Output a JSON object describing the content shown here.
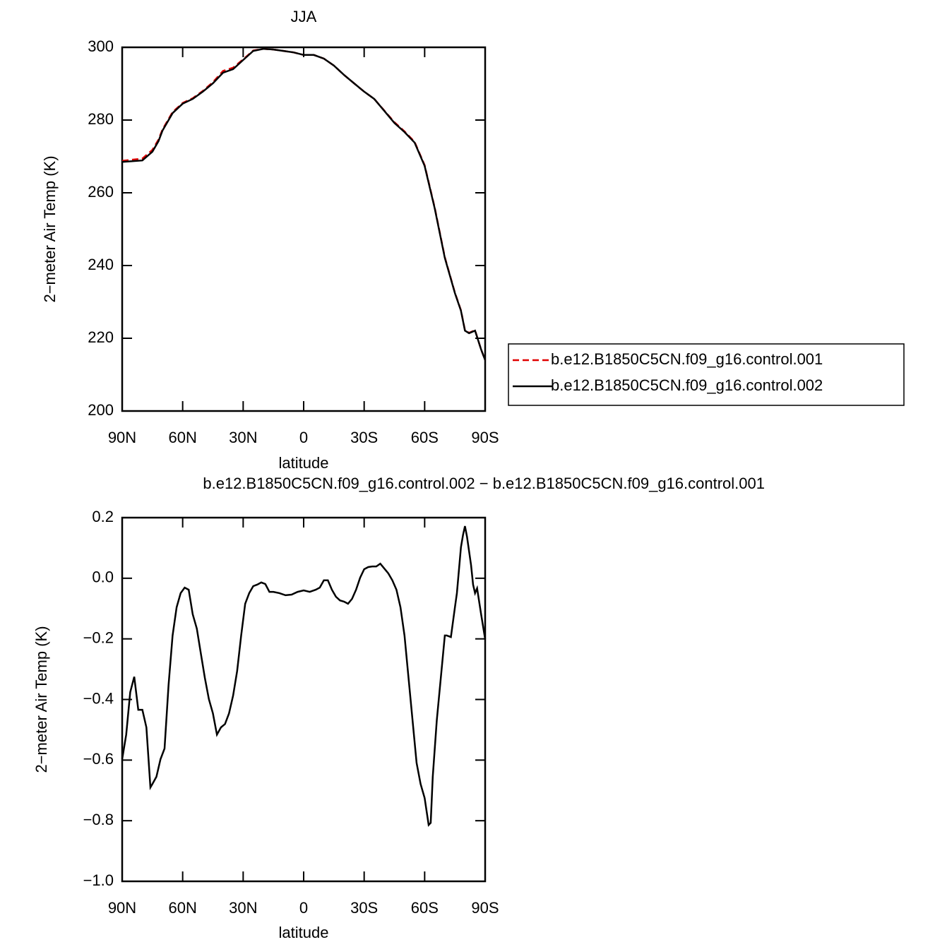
{
  "chart_data": [
    {
      "type": "line",
      "title": "JJA",
      "xlabel": "latitude",
      "ylabel": "2−meter Air Temp (K)",
      "x": [
        90,
        85,
        80,
        75,
        72,
        70,
        65,
        60,
        55,
        50,
        45,
        40,
        35,
        30,
        25,
        20,
        15,
        10,
        5,
        0,
        -5,
        -10,
        -15,
        -20,
        -25,
        -30,
        -35,
        -40,
        -45,
        -50,
        -55,
        -60,
        -65,
        -70,
        -75,
        -78,
        -80,
        -82,
        -85,
        -88,
        -90
      ],
      "series": [
        {
          "name": "b.e12.B1850C5CN.f09_g16.control.001",
          "color": "#e00000",
          "style": "dashed",
          "values": [
            268.8,
            269.1,
            269.4,
            271.8,
            274.6,
            277.4,
            282.2,
            284.7,
            286.0,
            288.0,
            290.4,
            293.5,
            294.4,
            296.7,
            299.1,
            299.6,
            299.4,
            299.0,
            298.6,
            297.9,
            297.9,
            296.9,
            295.0,
            292.4,
            290.1,
            287.8,
            285.8,
            282.6,
            279.4,
            276.9,
            274.0,
            267.6,
            255.9,
            242.3,
            232.5,
            227.7,
            222.2,
            221.5,
            222.2,
            216.9,
            214.0
          ]
        },
        {
          "name": "b.e12.B1850C5CN.f09_g16.control.002",
          "color": "#000000",
          "style": "solid",
          "values": [
            268.5,
            268.7,
            268.9,
            271.3,
            274.2,
            277.1,
            281.9,
            284.5,
            285.8,
            287.8,
            290.1,
            293.0,
            294.0,
            296.5,
            299.0,
            299.6,
            299.4,
            299.0,
            298.6,
            297.9,
            297.9,
            296.9,
            295.0,
            292.4,
            290.1,
            287.8,
            285.8,
            282.5,
            279.2,
            276.7,
            273.8,
            267.4,
            255.7,
            242.1,
            232.4,
            227.6,
            222.1,
            221.4,
            222.1,
            216.9,
            214.0
          ]
        }
      ],
      "xlim": [
        90,
        -90
      ],
      "xticks": [
        {
          "value": 90,
          "label": "90N"
        },
        {
          "value": 60,
          "label": "60N"
        },
        {
          "value": 30,
          "label": "30N"
        },
        0,
        {
          "value": -30,
          "label": "30S"
        },
        {
          "value": -60,
          "label": "60S"
        },
        {
          "value": -90,
          "label": "90S"
        }
      ],
      "ylim": [
        200,
        300
      ],
      "yticks": [
        200,
        220,
        240,
        260,
        280,
        300
      ],
      "legend": "right"
    },
    {
      "type": "line",
      "title": "b.e12.B1850C5CN.f09_g16.control.002 − b.e12.B1850C5CN.f09_g16.control.001",
      "xlabel": "latitude",
      "ylabel": "2−meter Air Temp (K)",
      "x": [
        90,
        88,
        86,
        84,
        82,
        80,
        78,
        76,
        75,
        73,
        71,
        69,
        67,
        65,
        63,
        61,
        59,
        57,
        55,
        53,
        51,
        49,
        47,
        45,
        43,
        41,
        39,
        37,
        35,
        33,
        31,
        29,
        27,
        25,
        23,
        21,
        19,
        17,
        15,
        12,
        9,
        6,
        3,
        0,
        -3,
        -6,
        -8,
        -10,
        -12,
        -14,
        -16,
        -18,
        -20,
        -22,
        -24,
        -26,
        -28,
        -30,
        -32,
        -34,
        -36,
        -38,
        -40,
        -42,
        -44,
        -46,
        -48,
        -50,
        -52,
        -54,
        -56,
        -58,
        -60,
        -62,
        -63,
        -64,
        -66,
        -68,
        -70,
        -71,
        -73,
        -75,
        -76,
        -78,
        -79,
        -80,
        -81,
        -83,
        -84,
        -85,
        -86,
        -88,
        -90
      ],
      "series": [
        {
          "color": "#000000",
          "style": "solid",
          "values": [
            -0.597,
            -0.516,
            -0.376,
            -0.325,
            -0.434,
            -0.434,
            -0.492,
            -0.69,
            -0.679,
            -0.655,
            -0.597,
            -0.562,
            -0.352,
            -0.189,
            -0.096,
            -0.049,
            -0.031,
            -0.038,
            -0.119,
            -0.166,
            -0.248,
            -0.329,
            -0.399,
            -0.446,
            -0.516,
            -0.492,
            -0.481,
            -0.446,
            -0.387,
            -0.306,
            -0.189,
            -0.084,
            -0.049,
            -0.026,
            -0.021,
            -0.014,
            -0.019,
            -0.045,
            -0.045,
            -0.049,
            -0.056,
            -0.054,
            -0.045,
            -0.04,
            -0.045,
            -0.038,
            -0.031,
            -0.007,
            -0.007,
            -0.038,
            -0.061,
            -0.073,
            -0.077,
            -0.084,
            -0.068,
            -0.038,
            0.002,
            0.03,
            0.037,
            0.039,
            0.039,
            0.048,
            0.032,
            0.016,
            -0.007,
            -0.038,
            -0.096,
            -0.189,
            -0.329,
            -0.469,
            -0.609,
            -0.679,
            -0.725,
            -0.814,
            -0.807,
            -0.655,
            -0.469,
            -0.329,
            -0.189,
            -0.189,
            -0.194,
            -0.096,
            -0.049,
            0.102,
            0.142,
            0.172,
            0.137,
            0.044,
            -0.021,
            -0.049,
            -0.033,
            -0.119,
            -0.201
          ]
        }
      ],
      "xlim": [
        90,
        -90
      ],
      "xticks": [
        {
          "value": 90,
          "label": "90N"
        },
        {
          "value": 60,
          "label": "60N"
        },
        {
          "value": 30,
          "label": "30N"
        },
        0,
        {
          "value": -30,
          "label": "30S"
        },
        {
          "value": -60,
          "label": "60S"
        },
        {
          "value": -90,
          "label": "90S"
        }
      ],
      "ylim": [
        -1.0,
        0.2
      ],
      "yticks": [
        {
          "value": -1.0,
          "label": "−1.0"
        },
        {
          "value": -0.8,
          "label": "−0.8"
        },
        {
          "value": -0.6,
          "label": "−0.6"
        },
        {
          "value": -0.4,
          "label": "−0.4"
        },
        {
          "value": -0.2,
          "label": "−0.2"
        },
        {
          "value": 0,
          "label": "0.0"
        },
        0.2
      ]
    }
  ]
}
